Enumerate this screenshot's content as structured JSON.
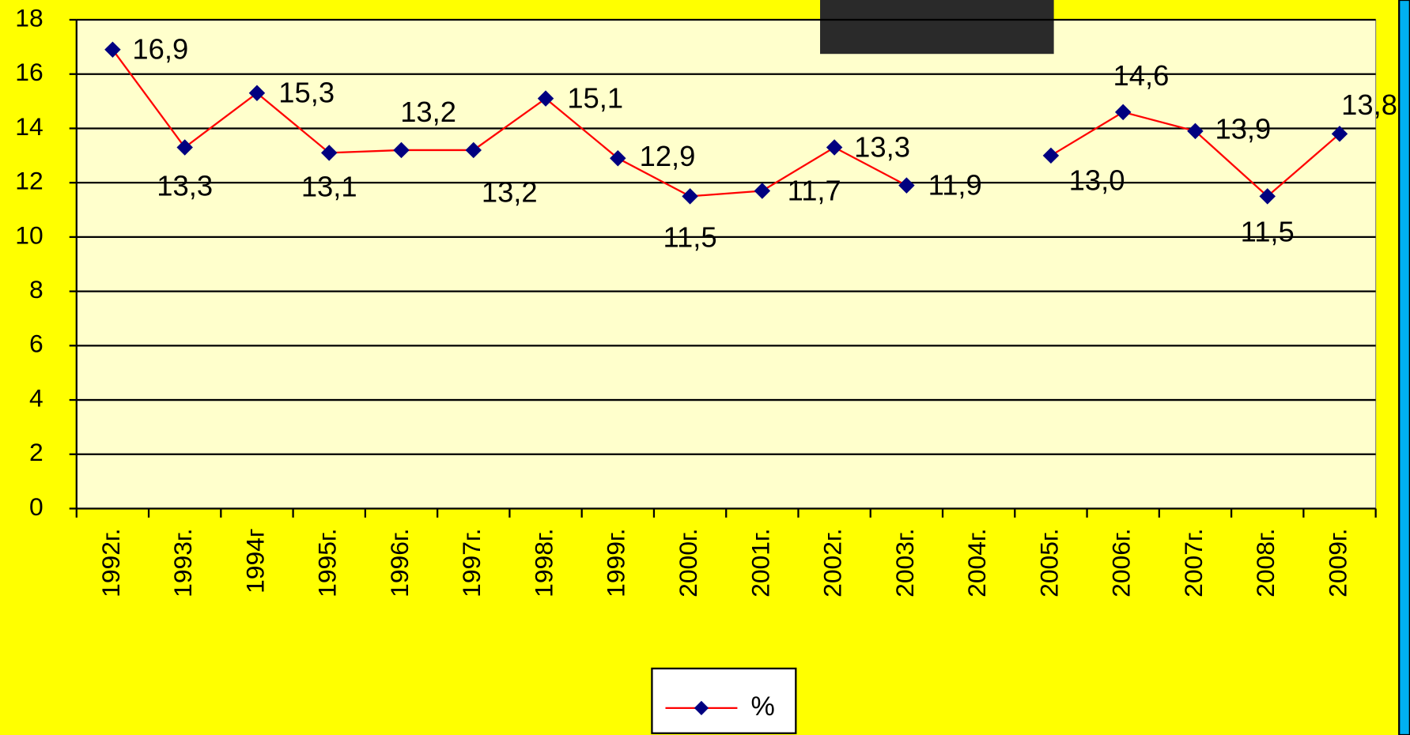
{
  "chart_data": {
    "type": "line",
    "categories": [
      "1992г.",
      "1993г.",
      "1994г",
      "1995г.",
      "1996г.",
      "1997г.",
      "1998г.",
      "1999г.",
      "2000г.",
      "2001г.",
      "2002г.",
      "2003г.",
      "2004г.",
      "2005г.",
      "2006г.",
      "2007г.",
      "2008г.",
      "2009г."
    ],
    "series": [
      {
        "name": "%",
        "color": "#ff0000",
        "marker_color": "#000080",
        "values": [
          16.9,
          13.3,
          15.3,
          13.1,
          13.2,
          13.2,
          15.1,
          12.9,
          11.5,
          11.7,
          13.3,
          11.9,
          null,
          13.0,
          14.6,
          13.9,
          11.5,
          13.8
        ],
        "value_labels": [
          "16,9",
          "13,3",
          "15,3",
          "13,1",
          "13,2",
          "13,2",
          "15,1",
          "12,9",
          "11,5",
          "11,7",
          "13,3",
          "11,9",
          null,
          "13,0",
          "14,6",
          "13,9",
          "11,5",
          "13,8"
        ]
      }
    ],
    "ylim": [
      0,
      18
    ],
    "yticks": [
      0,
      2,
      4,
      6,
      8,
      10,
      12,
      14,
      16,
      18
    ],
    "grid": true,
    "legend": "bottom"
  }
}
